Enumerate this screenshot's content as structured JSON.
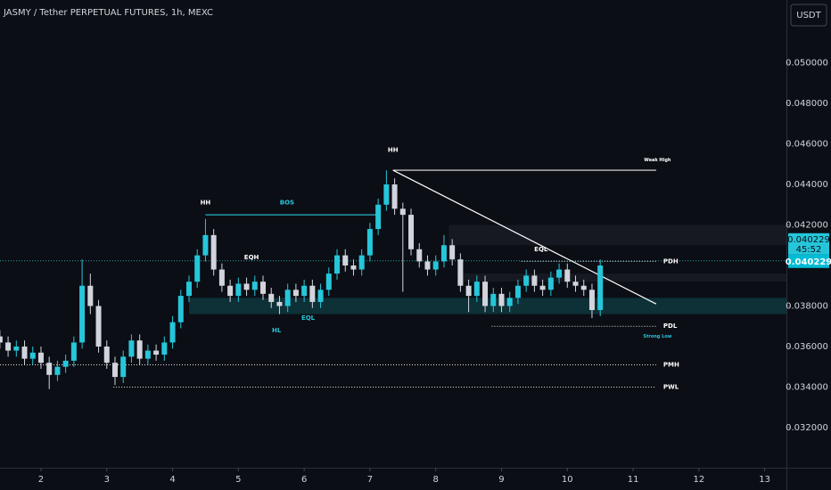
{
  "chart_data": {
    "type": "candlestick",
    "title": "JASMY / Tether PERPETUAL FUTURES, 1h, MEXC",
    "currency_button": "USDT",
    "up_color": "#26c6da",
    "down_color": "#d1d4dc",
    "x": [
      1.375,
      1.5,
      1.625,
      1.75,
      1.875,
      2,
      2.125,
      2.25,
      2.375,
      2.5,
      2.625,
      2.75,
      2.875,
      3,
      3.125,
      3.25,
      3.375,
      3.5,
      3.625,
      3.75,
      3.875,
      4,
      4.125,
      4.25,
      4.375,
      4.5,
      4.625,
      4.75,
      4.875,
      5,
      5.125,
      5.25,
      5.375,
      5.5,
      5.625,
      5.75,
      5.875,
      6,
      6.125,
      6.25,
      6.375,
      6.5,
      6.625,
      6.75,
      6.875,
      7,
      7.125,
      7.25,
      7.375,
      7.5,
      7.625,
      7.75,
      7.875,
      8,
      8.125,
      8.25,
      8.375,
      8.5,
      8.625,
      8.75,
      8.875,
      9,
      9.125,
      9.25,
      9.375,
      9.5,
      9.625,
      9.75,
      9.875,
      10,
      10.125,
      10.25,
      10.375,
      10.5
    ],
    "open": [
      0.0365,
      0.0362,
      0.0358,
      0.036,
      0.0354,
      0.0357,
      0.0352,
      0.0346,
      0.035,
      0.0353,
      0.0362,
      0.039,
      0.038,
      0.036,
      0.0352,
      0.0345,
      0.0355,
      0.0363,
      0.0354,
      0.0358,
      0.0356,
      0.0362,
      0.0372,
      0.0385,
      0.0392,
      0.0405,
      0.0415,
      0.0398,
      0.039,
      0.0385,
      0.0391,
      0.0388,
      0.0392,
      0.0386,
      0.0382,
      0.038,
      0.0388,
      0.0385,
      0.039,
      0.0382,
      0.0388,
      0.0396,
      0.0405,
      0.04,
      0.0398,
      0.0405,
      0.0418,
      0.043,
      0.044,
      0.0428,
      0.0425,
      0.0408,
      0.0402,
      0.0398,
      0.0402,
      0.041,
      0.0403,
      0.039,
      0.0385,
      0.0392,
      0.038,
      0.0386,
      0.038,
      0.0384,
      0.039,
      0.0395,
      0.039,
      0.0388,
      0.0394,
      0.0398,
      0.0392,
      0.039,
      0.0388,
      0.0378
    ],
    "close": [
      0.0362,
      0.0358,
      0.036,
      0.0354,
      0.0357,
      0.0352,
      0.0346,
      0.035,
      0.0353,
      0.0362,
      0.039,
      0.038,
      0.036,
      0.0352,
      0.0345,
      0.0355,
      0.0363,
      0.0354,
      0.0358,
      0.0356,
      0.0362,
      0.0372,
      0.0385,
      0.0392,
      0.0405,
      0.0415,
      0.0398,
      0.039,
      0.0385,
      0.0391,
      0.0388,
      0.0392,
      0.0386,
      0.0382,
      0.038,
      0.0388,
      0.0385,
      0.039,
      0.0382,
      0.0388,
      0.0396,
      0.0405,
      0.04,
      0.0398,
      0.0405,
      0.0418,
      0.043,
      0.044,
      0.0428,
      0.0425,
      0.0408,
      0.0402,
      0.0398,
      0.0402,
      0.041,
      0.0403,
      0.039,
      0.0385,
      0.0392,
      0.038,
      0.0386,
      0.038,
      0.0384,
      0.039,
      0.0395,
      0.039,
      0.0388,
      0.0394,
      0.0398,
      0.0392,
      0.039,
      0.0388,
      0.0378,
      0.04
    ],
    "high": [
      0.0368,
      0.0365,
      0.0363,
      0.0363,
      0.036,
      0.036,
      0.0355,
      0.0353,
      0.0356,
      0.0365,
      0.0403,
      0.0396,
      0.0383,
      0.0363,
      0.0355,
      0.0358,
      0.0366,
      0.0366,
      0.0361,
      0.0361,
      0.0365,
      0.0375,
      0.0388,
      0.0395,
      0.0408,
      0.0423,
      0.0418,
      0.0401,
      0.0393,
      0.0394,
      0.0394,
      0.0395,
      0.0395,
      0.0389,
      0.0385,
      0.0391,
      0.0391,
      0.0393,
      0.0393,
      0.0391,
      0.0399,
      0.0408,
      0.0408,
      0.0403,
      0.0408,
      0.0421,
      0.0433,
      0.0447,
      0.0443,
      0.0431,
      0.0428,
      0.0411,
      0.0405,
      0.0405,
      0.0415,
      0.0413,
      0.0406,
      0.0393,
      0.0395,
      0.0395,
      0.0389,
      0.0389,
      0.0387,
      0.0393,
      0.0398,
      0.0398,
      0.0393,
      0.0397,
      0.0401,
      0.0401,
      0.0395,
      0.0393,
      0.0391,
      0.0403
    ],
    "low": [
      0.0359,
      0.0355,
      0.0355,
      0.0351,
      0.0351,
      0.0349,
      0.0339,
      0.0343,
      0.0347,
      0.035,
      0.0359,
      0.0376,
      0.0357,
      0.0349,
      0.0341,
      0.0342,
      0.0352,
      0.0351,
      0.0351,
      0.0353,
      0.0353,
      0.0359,
      0.0369,
      0.0382,
      0.0389,
      0.0402,
      0.0395,
      0.0387,
      0.0382,
      0.0382,
      0.0385,
      0.0385,
      0.0383,
      0.0379,
      0.0376,
      0.0377,
      0.0382,
      0.0382,
      0.0379,
      0.0379,
      0.0385,
      0.0393,
      0.0397,
      0.0395,
      0.0395,
      0.0402,
      0.0415,
      0.0427,
      0.0425,
      0.0387,
      0.0405,
      0.0399,
      0.0395,
      0.0395,
      0.0399,
      0.04,
      0.0387,
      0.0377,
      0.0382,
      0.0377,
      0.0377,
      0.0377,
      0.0377,
      0.0381,
      0.0387,
      0.0387,
      0.0385,
      0.0385,
      0.0391,
      0.0389,
      0.0387,
      0.0385,
      0.0374,
      0.0375
    ],
    "xlim": [
      1.377,
      13.33
    ],
    "xticks": [
      2,
      3,
      4,
      5,
      6,
      7,
      8,
      9,
      10,
      11,
      12,
      13
    ],
    "ylim": [
      0.03002,
      0.0531
    ],
    "yticks": [
      {
        "value": 0.032,
        "label": "0.032000"
      },
      {
        "value": 0.034,
        "label": "0.034000"
      },
      {
        "value": 0.036,
        "label": "0.036000"
      },
      {
        "value": 0.038,
        "label": "0.038000"
      },
      {
        "value": 0.042,
        "label": "0.042000"
      },
      {
        "value": 0.044,
        "label": "0.044000"
      },
      {
        "value": 0.046,
        "label": "0.046000"
      },
      {
        "value": 0.048,
        "label": "0.048000"
      },
      {
        "value": 0.05,
        "label": "0.050000"
      }
    ],
    "last_price": 0.040229,
    "countdown": "45:52",
    "zones": [
      {
        "from": 4.25,
        "low": 0.0376,
        "high": 0.0384,
        "color": "#0f3a40"
      },
      {
        "from": 8.2,
        "low": 0.041,
        "high": 0.042,
        "color": "#1a1d26"
      },
      {
        "from": 8.4,
        "low": 0.0392,
        "high": 0.0396,
        "color": "#1a1d26"
      }
    ],
    "levels": [
      {
        "label": "PDH",
        "value": 0.0402,
        "from": 9.3,
        "to": 11.35,
        "style": "dotted",
        "color": "#ffffff"
      },
      {
        "label": "PDL",
        "value": 0.037,
        "from": 8.85,
        "to": 11.35,
        "style": "dotted",
        "color": "#ffffff"
      },
      {
        "label": "PMH",
        "value": 0.0351,
        "from": 1.377,
        "to": 11.35,
        "style": "dotted",
        "color": "#ffffff"
      },
      {
        "label": "PWL",
        "value": 0.034,
        "from": 3.1,
        "to": 11.35,
        "style": "dotted",
        "color": "#ffffff"
      },
      {
        "value": 0.0447,
        "from": 7.35,
        "to": 11.35,
        "style": "solid",
        "color": "#ffffff"
      },
      {
        "value": 0.0425,
        "from": 4.5,
        "to": 7.1,
        "style": "solid",
        "color": "#26c6da"
      }
    ],
    "trendline": {
      "x": [
        7.35,
        11.35
      ],
      "y": [
        0.0447,
        0.0381
      ],
      "color": "#ffffff"
    },
    "annotations": [
      {
        "text": "HH",
        "x": 4.5,
        "y": 0.0431,
        "color": "#ffffff"
      },
      {
        "text": "BOS",
        "x": 5.74,
        "y": 0.0431,
        "color": "#26c6da"
      },
      {
        "text": "HH",
        "x": 7.35,
        "y": 0.0457,
        "color": "#ffffff"
      },
      {
        "text": "EQH",
        "x": 5.2,
        "y": 0.0404,
        "color": "#ffffff"
      },
      {
        "text": "HL",
        "x": 5.58,
        "y": 0.0368,
        "color": "#26c6da"
      },
      {
        "text": "EQL",
        "x": 6.06,
        "y": 0.0374,
        "color": "#26c6da"
      },
      {
        "text": "EQL",
        "x": 9.6,
        "y": 0.0408,
        "color": "#ffffff"
      },
      {
        "text": "Weak High",
        "x": 11.37,
        "y": 0.0452,
        "color": "#ffffff"
      },
      {
        "text": "Strong Low",
        "x": 11.37,
        "y": 0.0365,
        "color": "#26c6da"
      }
    ]
  }
}
